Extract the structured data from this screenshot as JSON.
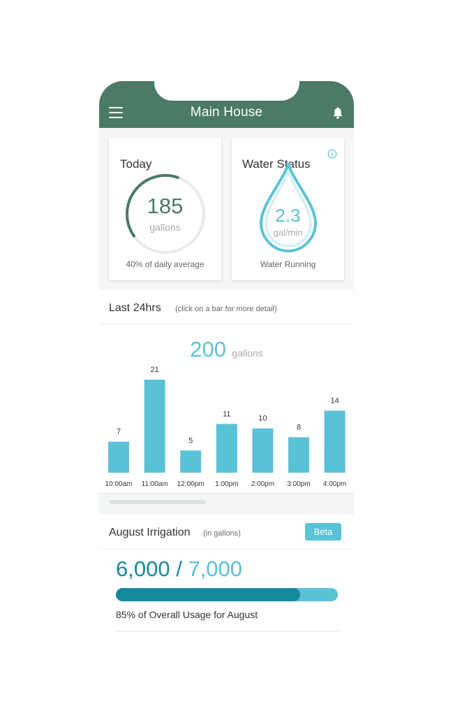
{
  "header": {
    "title": "Main House",
    "menu_icon": "hamburger-menu-icon",
    "bell_icon": "bell-icon",
    "color": "#4b7a66"
  },
  "today": {
    "title": "Today",
    "value": "185",
    "unit": "gallons",
    "gauge_fraction": 0.4,
    "caption": "40% of daily average"
  },
  "water_status": {
    "title": "Water Status",
    "info_icon": "info-icon",
    "value": "2.3",
    "unit": "gal/min",
    "caption": "Water Running"
  },
  "last24": {
    "title": "Last 24hrs",
    "note": "(click on a bar for more detail)",
    "total_value": "200",
    "total_unit": "gallons"
  },
  "chart_data": {
    "type": "bar",
    "categories": [
      "10:00am",
      "11:00am",
      "12:00pm",
      "1:00pm",
      "2:00pm",
      "3:00pm",
      "4:00pm"
    ],
    "values": [
      7,
      21,
      5,
      11,
      10,
      8,
      14
    ],
    "bar_color": "#5ac2d6"
  },
  "irrigation": {
    "title": "August Irrigation",
    "note": "(in gallons)",
    "badge": "Beta",
    "used": "6,000",
    "separator": "/",
    "goal": "7,000",
    "progress_fraction": 0.83,
    "caption": "85% of Overall Usage for August"
  },
  "colors": {
    "primary": "#4b7a66",
    "accent": "#5ac2d6",
    "accent_dark": "#138a9c"
  }
}
